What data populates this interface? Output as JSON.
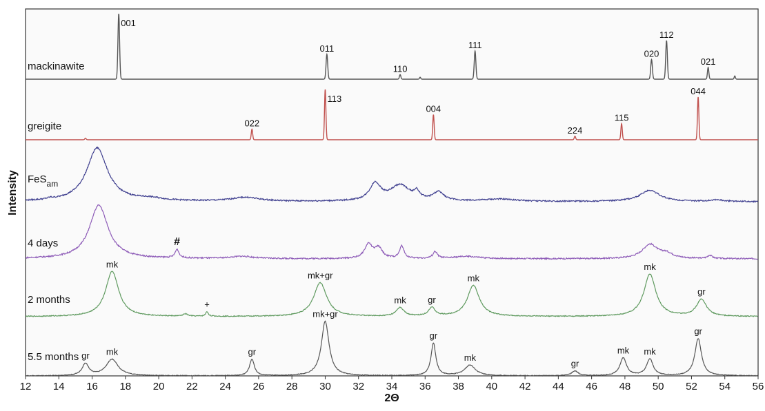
{
  "chart_data": {
    "type": "line",
    "title": "",
    "xlabel": "2Θ",
    "ylabel": "Intensity",
    "xlim": [
      12,
      56
    ],
    "x_ticks": [
      12,
      14,
      16,
      18,
      20,
      22,
      24,
      26,
      28,
      30,
      32,
      34,
      36,
      38,
      40,
      42,
      44,
      46,
      48,
      50,
      52,
      54,
      56
    ],
    "grid": false,
    "legend": "none",
    "series": [
      {
        "name": "mackinawite",
        "label_parts": [
          "mackinawite"
        ],
        "color": "#555555",
        "kind": "peaks",
        "baseline": 0.0,
        "peaks": [
          {
            "x": 17.6,
            "h": 1.0,
            "w": 0.07,
            "label": "001"
          },
          {
            "x": 30.1,
            "h": 0.38,
            "w": 0.07,
            "label": "011"
          },
          {
            "x": 34.5,
            "h": 0.07,
            "w": 0.06,
            "label": "110"
          },
          {
            "x": 35.7,
            "h": 0.03,
            "w": 0.05,
            "label": ""
          },
          {
            "x": 39.0,
            "h": 0.43,
            "w": 0.07,
            "label": "111"
          },
          {
            "x": 49.6,
            "h": 0.3,
            "w": 0.07,
            "label": "020"
          },
          {
            "x": 50.5,
            "h": 0.59,
            "w": 0.07,
            "label": "112"
          },
          {
            "x": 53.0,
            "h": 0.18,
            "w": 0.06,
            "label": "021"
          },
          {
            "x": 54.6,
            "h": 0.05,
            "w": 0.05,
            "label": ""
          }
        ]
      },
      {
        "name": "greigite",
        "label_parts": [
          "greigite"
        ],
        "color": "#c0504d",
        "kind": "peaks",
        "baseline": 0.0,
        "peaks": [
          {
            "x": 15.6,
            "h": 0.03,
            "w": 0.06,
            "label": ""
          },
          {
            "x": 25.6,
            "h": 0.21,
            "w": 0.06,
            "label": "022"
          },
          {
            "x": 30.0,
            "h": 1.0,
            "w": 0.06,
            "label": "113"
          },
          {
            "x": 36.5,
            "h": 0.5,
            "w": 0.06,
            "label": "004"
          },
          {
            "x": 45.0,
            "h": 0.07,
            "w": 0.06,
            "label": "224"
          },
          {
            "x": 47.8,
            "h": 0.32,
            "w": 0.06,
            "label": "115"
          },
          {
            "x": 52.4,
            "h": 0.85,
            "w": 0.06,
            "label": "044"
          }
        ]
      },
      {
        "name": "FeSam",
        "label_parts": [
          "FeS",
          "am"
        ],
        "color": "#3f3f8f",
        "kind": "broad",
        "baseline": 0.0,
        "noise": 0.012,
        "peaks": [
          {
            "x": 16.3,
            "h": 0.95,
            "w": 0.95
          },
          {
            "x": 13.5,
            "h": 0.02,
            "w": 0.25
          },
          {
            "x": 19.5,
            "h": 0.04,
            "w": 1.2
          },
          {
            "x": 25.2,
            "h": 0.07,
            "w": 1.3
          },
          {
            "x": 33.0,
            "h": 0.3,
            "w": 0.5
          },
          {
            "x": 34.5,
            "h": 0.28,
            "w": 0.9
          },
          {
            "x": 35.5,
            "h": 0.12,
            "w": 0.25
          },
          {
            "x": 36.8,
            "h": 0.15,
            "w": 0.5
          },
          {
            "x": 40.5,
            "h": 0.04,
            "w": 1.5
          },
          {
            "x": 49.5,
            "h": 0.2,
            "w": 0.9
          },
          {
            "x": 53.5,
            "h": 0.03,
            "w": 0.6
          }
        ]
      },
      {
        "name": "4 days",
        "label_parts": [
          "4 days"
        ],
        "color": "#8e5cb8",
        "kind": "broad",
        "baseline": 0.0,
        "noise": 0.012,
        "peaks": [
          {
            "x": 16.4,
            "h": 0.95,
            "w": 0.85
          },
          {
            "x": 21.1,
            "h": 0.15,
            "w": 0.18,
            "label": "#"
          },
          {
            "x": 25.0,
            "h": 0.04,
            "w": 1.0
          },
          {
            "x": 32.6,
            "h": 0.25,
            "w": 0.35
          },
          {
            "x": 33.2,
            "h": 0.18,
            "w": 0.35
          },
          {
            "x": 34.6,
            "h": 0.22,
            "w": 0.2
          },
          {
            "x": 36.6,
            "h": 0.12,
            "w": 0.2
          },
          {
            "x": 38.5,
            "h": 0.04,
            "w": 1.2
          },
          {
            "x": 49.5,
            "h": 0.25,
            "w": 0.7
          },
          {
            "x": 50.5,
            "h": 0.08,
            "w": 0.6
          },
          {
            "x": 53.1,
            "h": 0.06,
            "w": 0.2
          }
        ]
      },
      {
        "name": "2 months",
        "label_parts": [
          "2 months"
        ],
        "color": "#5f9a5f",
        "kind": "broad",
        "baseline": 0.0,
        "noise": 0.008,
        "peaks": [
          {
            "x": 17.2,
            "h": 0.8,
            "w": 0.6,
            "label": "mk"
          },
          {
            "x": 21.6,
            "h": 0.04,
            "w": 0.2
          },
          {
            "x": 22.9,
            "h": 0.08,
            "w": 0.12,
            "label": "+"
          },
          {
            "x": 29.7,
            "h": 0.6,
            "w": 0.6,
            "label": "mk+gr"
          },
          {
            "x": 34.5,
            "h": 0.15,
            "w": 0.35,
            "label": "mk"
          },
          {
            "x": 36.4,
            "h": 0.15,
            "w": 0.3,
            "label": "gr"
          },
          {
            "x": 38.9,
            "h": 0.55,
            "w": 0.55,
            "label": "mk"
          },
          {
            "x": 49.5,
            "h": 0.75,
            "w": 0.55,
            "label": "mk"
          },
          {
            "x": 52.6,
            "h": 0.3,
            "w": 0.45,
            "label": "gr"
          }
        ]
      },
      {
        "name": "5.5 months",
        "label_parts": [
          "5.5 months"
        ],
        "color": "#555555",
        "kind": "broad",
        "baseline": 0.0,
        "noise": 0.006,
        "peaks": [
          {
            "x": 15.6,
            "h": 0.2,
            "w": 0.3,
            "label": "gr"
          },
          {
            "x": 17.2,
            "h": 0.28,
            "w": 0.55,
            "label": "mk"
          },
          {
            "x": 25.6,
            "h": 0.28,
            "w": 0.22,
            "label": "gr"
          },
          {
            "x": 30.0,
            "h": 0.92,
            "w": 0.35,
            "label": "mk+gr"
          },
          {
            "x": 36.5,
            "h": 0.55,
            "w": 0.22,
            "label": "gr"
          },
          {
            "x": 38.7,
            "h": 0.18,
            "w": 0.5,
            "label": "mk"
          },
          {
            "x": 45.0,
            "h": 0.08,
            "w": 0.3,
            "label": "gr"
          },
          {
            "x": 47.9,
            "h": 0.3,
            "w": 0.3,
            "label": "mk"
          },
          {
            "x": 49.5,
            "h": 0.28,
            "w": 0.3,
            "label": "mk"
          },
          {
            "x": 52.4,
            "h": 0.63,
            "w": 0.3,
            "label": "gr"
          }
        ]
      }
    ]
  }
}
